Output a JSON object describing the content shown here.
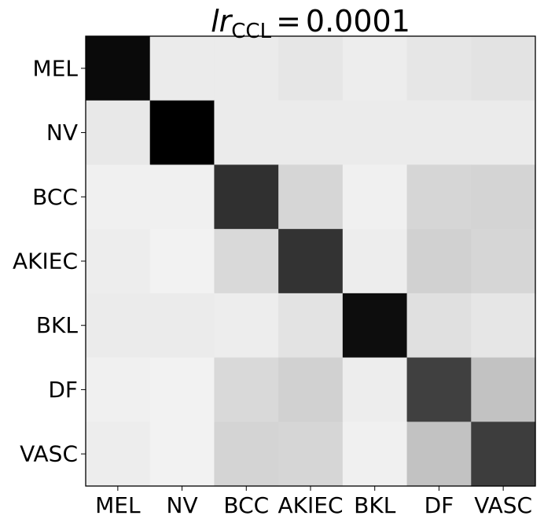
{
  "chart_data": {
    "type": "heatmap",
    "title": {
      "symbol": "lr",
      "subscript": "CCL",
      "equals": "=",
      "value": "0.0001"
    },
    "xlabel": "",
    "ylabel": "",
    "x_categories": [
      "MEL",
      "NV",
      "BCC",
      "AKIEC",
      "BKL",
      "DF",
      "VASC"
    ],
    "y_categories": [
      "MEL",
      "NV",
      "BCC",
      "AKIEC",
      "BKL",
      "DF",
      "VASC"
    ],
    "colormap": "gray_r",
    "value_range": [
      0,
      1
    ],
    "grid": false,
    "colorbar": false,
    "values": [
      [
        0.96,
        0.08,
        0.08,
        0.1,
        0.07,
        0.1,
        0.11
      ],
      [
        0.09,
        1.0,
        0.08,
        0.08,
        0.08,
        0.08,
        0.08
      ],
      [
        0.06,
        0.06,
        0.81,
        0.16,
        0.06,
        0.16,
        0.17
      ],
      [
        0.07,
        0.05,
        0.15,
        0.8,
        0.07,
        0.18,
        0.16
      ],
      [
        0.08,
        0.08,
        0.07,
        0.11,
        0.95,
        0.12,
        0.1
      ],
      [
        0.06,
        0.05,
        0.15,
        0.18,
        0.07,
        0.75,
        0.24
      ],
      [
        0.07,
        0.05,
        0.17,
        0.16,
        0.06,
        0.24,
        0.76
      ]
    ]
  }
}
